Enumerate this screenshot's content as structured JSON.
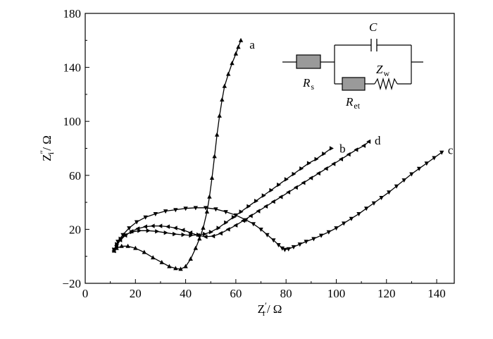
{
  "chart_data": {
    "type": "line",
    "title": "",
    "xlabel": {
      "main": "Z",
      "sup": "′",
      "sub": "r",
      "unit": "/ Ω"
    },
    "ylabel": {
      "main": "Z",
      "sup": "″",
      "sub": "i",
      "unit": "/ Ω"
    },
    "xlim": [
      0,
      147
    ],
    "ylim": [
      -20,
      180
    ],
    "xticks": [
      0,
      20,
      40,
      60,
      80,
      100,
      120,
      140
    ],
    "yticks": [
      -20,
      20,
      60,
      100,
      140,
      180
    ],
    "ytick_labels": [
      "−20",
      "20",
      "60",
      "100",
      "140",
      "180"
    ],
    "grid": false,
    "legend": "none",
    "series": [
      {
        "name": "a",
        "marker": "triangle-up",
        "x": [
          11.5,
          12.5,
          14.5,
          17,
          20,
          23.5,
          27,
          30.5,
          33.5,
          36,
          38,
          40,
          42,
          44,
          45.5,
          47,
          48.5,
          49.5,
          50.5,
          51.5,
          52.5,
          53.5,
          54.5,
          55.5,
          57,
          58.5,
          60,
          61,
          62
        ],
        "y": [
          4,
          6,
          7.5,
          7.5,
          6,
          3,
          -1,
          -4.5,
          -7.5,
          -9,
          -9.5,
          -7.5,
          -2,
          6,
          13,
          21,
          33,
          44,
          58,
          74,
          90,
          104,
          116,
          126,
          135,
          143,
          150,
          155,
          160
        ]
      },
      {
        "name": "b",
        "marker": "triangle-right",
        "x": [
          11.5,
          12.5,
          14,
          16,
          18.5,
          21.5,
          25,
          28.5,
          32,
          35.5,
          39,
          42,
          45,
          47.5,
          50,
          53,
          56,
          59,
          62,
          65,
          68,
          71,
          74,
          77,
          80,
          83,
          86,
          89,
          92,
          95,
          98
        ],
        "y": [
          5,
          9,
          13,
          16,
          18,
          19,
          19,
          18.5,
          17.5,
          16.5,
          16,
          15.5,
          16,
          16.5,
          18,
          21,
          25,
          29,
          33,
          37,
          41,
          45,
          49,
          53,
          57,
          61,
          65,
          69,
          72,
          76,
          80
        ]
      },
      {
        "name": "c",
        "marker": "triangle-down",
        "x": [
          11.5,
          13,
          15,
          17.5,
          20.5,
          24,
          28,
          32,
          36,
          40,
          44,
          48,
          52,
          56,
          60,
          64,
          67,
          70,
          72.5,
          75,
          77,
          78.5,
          79.5,
          81,
          83,
          85.5,
          88,
          91,
          94,
          97,
          100,
          103,
          106,
          109,
          112,
          115,
          118,
          121,
          124,
          127,
          130,
          133,
          136,
          139,
          142
        ],
        "y": [
          5,
          11,
          16,
          21,
          25.5,
          29,
          31.5,
          33.5,
          34.5,
          35.5,
          36,
          36,
          35,
          33,
          30.5,
          27,
          24,
          20,
          16,
          12,
          8.5,
          6,
          5,
          5.5,
          7,
          9,
          11,
          13,
          15.5,
          18,
          21,
          24.5,
          28,
          31.5,
          35.5,
          39.5,
          43.5,
          47.5,
          52,
          56.5,
          61,
          65,
          69,
          73,
          77
        ]
      },
      {
        "name": "d",
        "marker": "triangle-left",
        "x": [
          11.5,
          12.5,
          14,
          16,
          18.5,
          21,
          24,
          27,
          30,
          33,
          36,
          39,
          42,
          45,
          48,
          51,
          54,
          57,
          60,
          63,
          66,
          69,
          72,
          75,
          78,
          81,
          84,
          87,
          90,
          93,
          96,
          99,
          102,
          105,
          108,
          111,
          113
        ],
        "y": [
          4,
          8,
          12,
          15.5,
          18.5,
          20.5,
          22,
          22.5,
          22.5,
          22,
          21,
          19.5,
          17.5,
          15.5,
          14.5,
          15,
          17,
          20,
          23,
          26.5,
          30,
          33.5,
          37,
          40.5,
          44,
          47.5,
          51,
          54.5,
          58,
          61.5,
          65,
          68.5,
          72,
          75.5,
          79,
          82,
          85
        ]
      }
    ],
    "series_labels": [
      {
        "text": "a",
        "x": 66.5,
        "y": 157
      },
      {
        "text": "b",
        "x": 102.5,
        "y": 80
      },
      {
        "text": "c",
        "x": 145.5,
        "y": 79
      },
      {
        "text": "d",
        "x": 116.5,
        "y": 86
      }
    ],
    "inset_circuit": {
      "elements": [
        {
          "id": "Rs",
          "main": "R",
          "sub": "s"
        },
        {
          "id": "C",
          "main": "C",
          "sub": ""
        },
        {
          "id": "Ret",
          "main": "R",
          "sub": "et"
        },
        {
          "id": "Zw",
          "main": "Z",
          "sub": "w"
        }
      ]
    }
  }
}
